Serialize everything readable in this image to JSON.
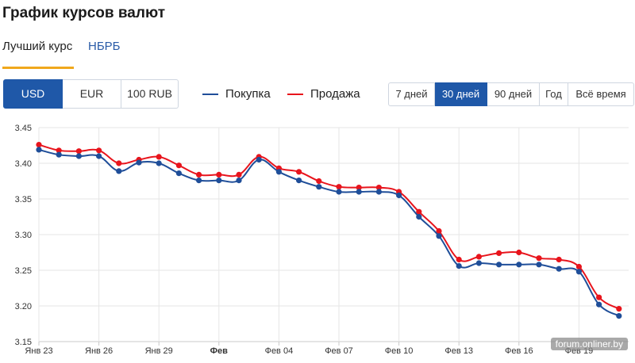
{
  "page": {
    "title": "График курсов валют"
  },
  "tabs": {
    "best_rate": "Лучший курс",
    "nbrb": "НБРБ"
  },
  "currency_buttons": [
    "USD",
    "EUR",
    "100 RUB"
  ],
  "legend": {
    "buy": "Покупка",
    "sell": "Продажа"
  },
  "period_buttons": [
    "7 дней",
    "30 дней",
    "90 дней",
    "Год",
    "Всё время"
  ],
  "watermark": "forum.onliner.by",
  "colors": {
    "buy": "#1f4e99",
    "sell": "#e8141c",
    "accent": "#1f58a8",
    "tab_underline": "#f0a81c"
  },
  "chart_data": {
    "type": "line",
    "ylim": [
      3.15,
      3.45
    ],
    "y_ticks": [
      "3.15",
      "3.20",
      "3.25",
      "3.30",
      "3.35",
      "3.40",
      "3.45"
    ],
    "x_ticks": [
      {
        "label": "Янв 23",
        "day": 0,
        "bold": false
      },
      {
        "label": "Янв 26",
        "day": 3,
        "bold": false
      },
      {
        "label": "Янв 29",
        "day": 6,
        "bold": false
      },
      {
        "label": "Фев",
        "day": 9,
        "bold": true
      },
      {
        "label": "Фев 04",
        "day": 12,
        "bold": false
      },
      {
        "label": "Фев 07",
        "day": 15,
        "bold": false
      },
      {
        "label": "Фев 10",
        "day": 18,
        "bold": false
      },
      {
        "label": "Фев 13",
        "day": 21,
        "bold": false
      },
      {
        "label": "Фев 16",
        "day": 24,
        "bold": false
      },
      {
        "label": "Фев 19",
        "day": 27,
        "bold": false
      }
    ],
    "grid": true,
    "series": [
      {
        "name": "Покупка",
        "color": "#1f4e99",
        "x": [
          0,
          1,
          2,
          3,
          4,
          5,
          6,
          7,
          8,
          9,
          10,
          11,
          12,
          13,
          14,
          15,
          16,
          17,
          18,
          19,
          20,
          21,
          22,
          23,
          24,
          25,
          26,
          27,
          28,
          29
        ],
        "values": [
          3.419,
          3.412,
          3.41,
          3.41,
          3.389,
          3.401,
          3.4,
          3.386,
          3.376,
          3.376,
          3.376,
          3.405,
          3.388,
          3.376,
          3.367,
          3.36,
          3.36,
          3.36,
          3.355,
          3.325,
          3.298,
          3.256,
          3.26,
          3.258,
          3.258,
          3.258,
          3.252,
          3.248,
          3.202,
          3.186
        ]
      },
      {
        "name": "Продажа",
        "color": "#e8141c",
        "x": [
          0,
          1,
          2,
          3,
          4,
          5,
          6,
          7,
          8,
          9,
          10,
          11,
          12,
          13,
          14,
          15,
          16,
          17,
          18,
          19,
          20,
          21,
          22,
          23,
          24,
          25,
          26,
          27,
          28,
          29
        ],
        "values": [
          3.426,
          3.418,
          3.417,
          3.418,
          3.4,
          3.405,
          3.409,
          3.397,
          3.384,
          3.384,
          3.384,
          3.409,
          3.393,
          3.388,
          3.375,
          3.367,
          3.366,
          3.366,
          3.36,
          3.332,
          3.305,
          3.265,
          3.269,
          3.274,
          3.275,
          3.267,
          3.265,
          3.255,
          3.212,
          3.196
        ]
      }
    ]
  }
}
